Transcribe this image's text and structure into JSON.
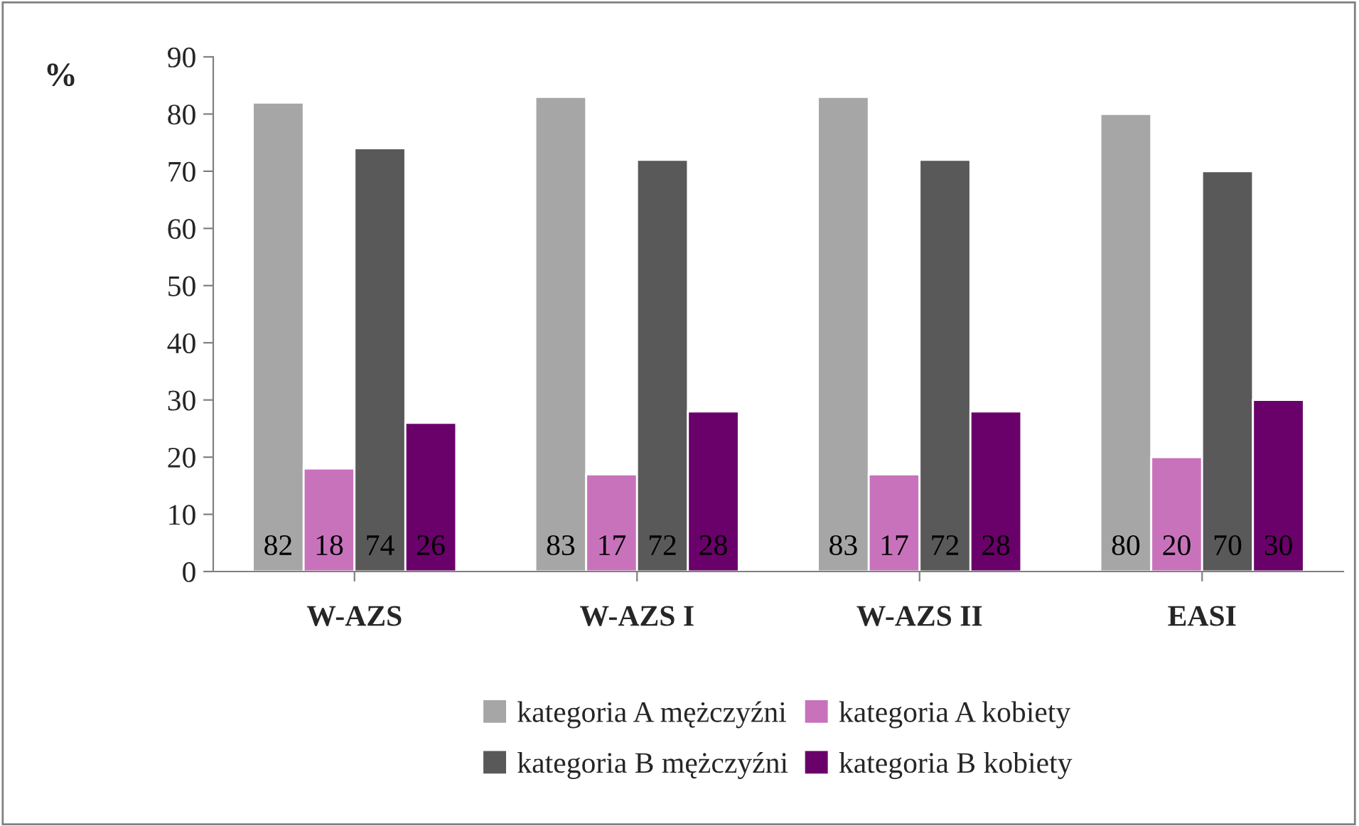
{
  "chart_data": {
    "type": "bar",
    "ylabel": "%",
    "categories": [
      "W-AZS",
      "W-AZS I",
      "W-AZS II",
      "EASI"
    ],
    "series": [
      {
        "name": "kategoria A mężczyźni",
        "color": "#a6a6a6",
        "values": [
          82,
          83,
          83,
          80
        ]
      },
      {
        "name": "kategoria A kobiety",
        "color": "#c872bc",
        "values": [
          18,
          17,
          17,
          20
        ]
      },
      {
        "name": "kategoria B mężczyźni",
        "color": "#595959",
        "values": [
          74,
          72,
          72,
          70
        ]
      },
      {
        "name": "kategoria B kobiety",
        "color": "#6a006a",
        "values": [
          26,
          28,
          28,
          30
        ]
      }
    ],
    "ylim": [
      0,
      90
    ],
    "yticks": [
      0,
      10,
      20,
      30,
      40,
      50,
      60,
      70,
      80,
      90
    ],
    "grid": false,
    "legend": "bottom",
    "data_labels": true
  }
}
